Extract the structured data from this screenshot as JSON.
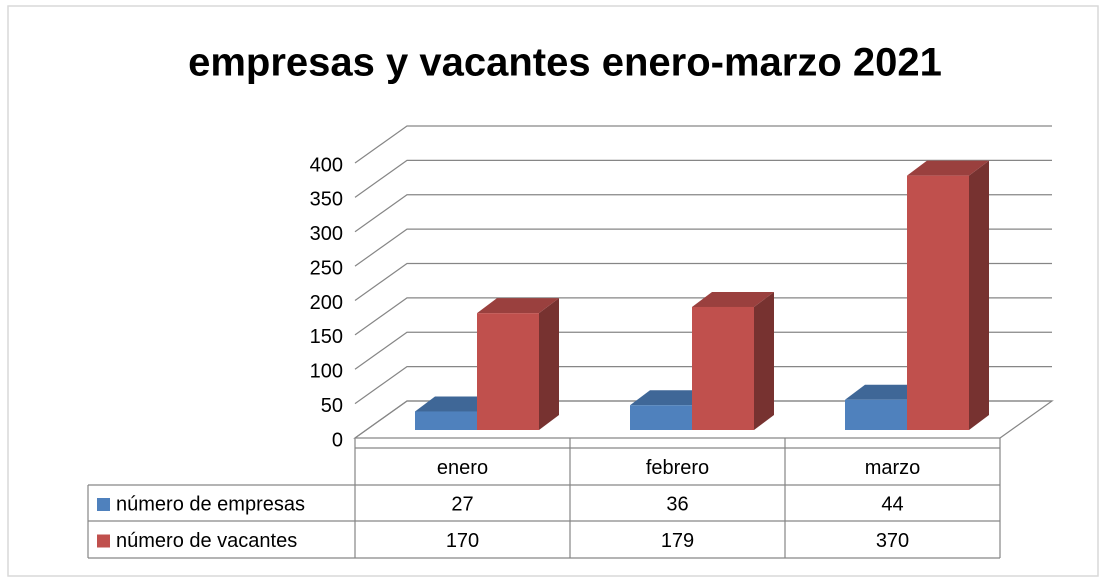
{
  "chart_data": {
    "type": "bar3d",
    "title": "empresas y vacantes enero-marzo 2021",
    "categories": [
      "enero",
      "febrero",
      "marzo"
    ],
    "series": [
      {
        "name": "número de empresas",
        "color": "#4f81bd",
        "values": [
          27,
          36,
          44
        ]
      },
      {
        "name": "número de vacantes",
        "color": "#c0504d",
        "values": [
          170,
          179,
          370
        ]
      }
    ],
    "ylim": [
      0,
      400
    ],
    "yticks": [
      0,
      50,
      100,
      150,
      200,
      250,
      300,
      350,
      400
    ],
    "grid": true,
    "data_table": true
  }
}
